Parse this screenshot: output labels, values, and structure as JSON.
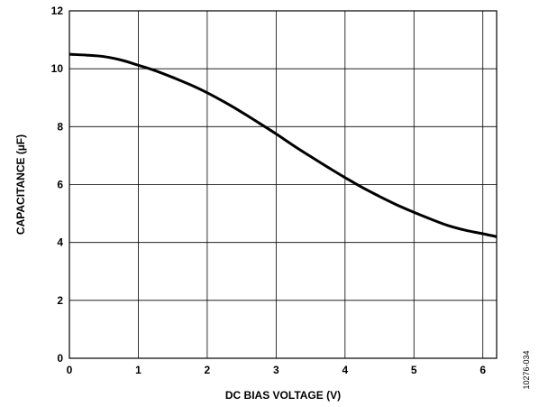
{
  "chart_data": {
    "type": "line",
    "xlabel": "DC BIAS VOLTAGE (V)",
    "ylabel": "CAPACITANCE (µF)",
    "xlim": [
      0,
      6.2
    ],
    "ylim": [
      0,
      12
    ],
    "x_ticks": [
      0,
      1,
      2,
      3,
      4,
      5,
      6
    ],
    "y_ticks": [
      0,
      2,
      4,
      6,
      8,
      10,
      12
    ],
    "grid": true,
    "series": [
      {
        "x": [
          0,
          0.25,
          0.5,
          0.75,
          1.0,
          1.25,
          1.5,
          1.75,
          2.0,
          2.25,
          2.5,
          2.75,
          3.0,
          3.25,
          3.5,
          3.75,
          4.0,
          4.25,
          4.5,
          4.75,
          5.0,
          5.25,
          5.5,
          5.75,
          6.0,
          6.2
        ],
        "y": [
          10.5,
          10.47,
          10.42,
          10.3,
          10.12,
          9.93,
          9.7,
          9.45,
          9.17,
          8.85,
          8.5,
          8.13,
          7.75,
          7.35,
          6.97,
          6.6,
          6.24,
          5.9,
          5.59,
          5.3,
          5.04,
          4.8,
          4.58,
          4.42,
          4.3,
          4.2
        ]
      }
    ],
    "figure_id": "10276-034"
  }
}
